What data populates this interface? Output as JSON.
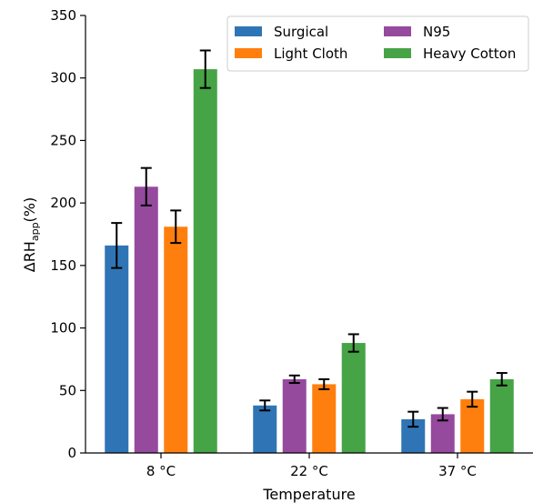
{
  "chart_data": {
    "type": "bar",
    "title": "",
    "xlabel": "Temperature",
    "ylabel_main": "ΔRH",
    "ylabel_sub": "app",
    "ylabel_unit": "(%)",
    "categories": [
      "8 °C",
      "22 °C",
      "37 °C"
    ],
    "ylim": [
      0,
      350
    ],
    "yticks": [
      0,
      50,
      100,
      150,
      200,
      250,
      300,
      350
    ],
    "grid": false,
    "legend_position": "top-right",
    "series": [
      {
        "name": "Surgical",
        "color": "#2f75b5",
        "values": [
          166,
          38,
          27
        ],
        "errors": [
          18,
          4,
          6
        ]
      },
      {
        "name": "N95",
        "color": "#954a9e",
        "values": [
          213,
          59,
          31
        ],
        "errors": [
          15,
          3,
          5
        ]
      },
      {
        "name": "Light Cloth",
        "color": "#ff7f0e",
        "values": [
          181,
          55,
          43
        ],
        "errors": [
          13,
          4,
          6
        ]
      },
      {
        "name": "Heavy Cotton",
        "color": "#46a346",
        "values": [
          307,
          88,
          59
        ],
        "errors": [
          15,
          7,
          5
        ]
      }
    ]
  }
}
